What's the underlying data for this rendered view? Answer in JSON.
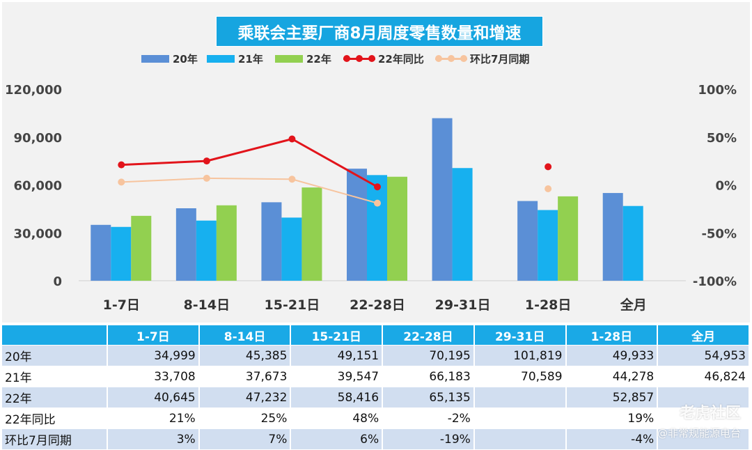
{
  "chart_data": {
    "type": "bar",
    "title": "乘联会主要厂商8月周度零售数量和增速",
    "categories": [
      "1-7日",
      "8-14日",
      "15-21日",
      "22-28日",
      "29-31日",
      "1-28日",
      "全月"
    ],
    "series": [
      {
        "name": "20年",
        "kind": "bar",
        "axis": "left",
        "color": "#5b8fd6",
        "values": [
          34999,
          45385,
          49151,
          70195,
          101819,
          49933,
          54953
        ]
      },
      {
        "name": "21年",
        "kind": "bar",
        "axis": "left",
        "color": "#17b0ef",
        "values": [
          33708,
          37673,
          39547,
          66183,
          70589,
          44278,
          46824
        ]
      },
      {
        "name": "22年",
        "kind": "bar",
        "axis": "left",
        "color": "#92d050",
        "values": [
          40645,
          47232,
          58416,
          65135,
          null,
          52857,
          null
        ]
      },
      {
        "name": "22年同比",
        "kind": "line",
        "axis": "right",
        "color": "#e2141b",
        "values": [
          21,
          25,
          48,
          -2,
          null,
          19,
          null
        ]
      },
      {
        "name": "环比7月同期",
        "kind": "line",
        "axis": "right",
        "color": "#f7c49e",
        "values": [
          3,
          7,
          6,
          -19,
          null,
          -4,
          null
        ]
      }
    ],
    "ylim_left": [
      0,
      120000
    ],
    "ylim_right": [
      -100,
      100
    ],
    "left_ticks": [
      "0",
      "30,000",
      "60,000",
      "90,000",
      "120,000"
    ],
    "right_ticks": [
      "-100%",
      "-50%",
      "0%",
      "50%",
      "100%"
    ],
    "legend_position": "top",
    "grid": false
  },
  "table": {
    "headers": [
      "",
      "1-7日",
      "8-14日",
      "15-21日",
      "22-28日",
      "29-31日",
      "1-28日",
      "全月"
    ],
    "rows": [
      {
        "label": "20年",
        "cells": [
          "34,999",
          "45,385",
          "49,151",
          "70,195",
          "101,819",
          "49,933",
          "54,953"
        ]
      },
      {
        "label": "21年",
        "cells": [
          "33,708",
          "37,673",
          "39,547",
          "66,183",
          "70,589",
          "44,278",
          "46,824"
        ]
      },
      {
        "label": "22年",
        "cells": [
          "40,645",
          "47,232",
          "58,416",
          "65,135",
          "",
          "52,857",
          ""
        ]
      },
      {
        "label": "22年同比",
        "cells": [
          "21%",
          "25%",
          "48%",
          "-2%",
          "",
          "19%",
          ""
        ]
      },
      {
        "label": "环比7月同期",
        "cells": [
          "3%",
          "7%",
          "6%",
          "-19%",
          "",
          "-4%",
          ""
        ]
      }
    ]
  },
  "watermark": {
    "brand": "老虎社区",
    "sub": "@非常规能源电台"
  }
}
